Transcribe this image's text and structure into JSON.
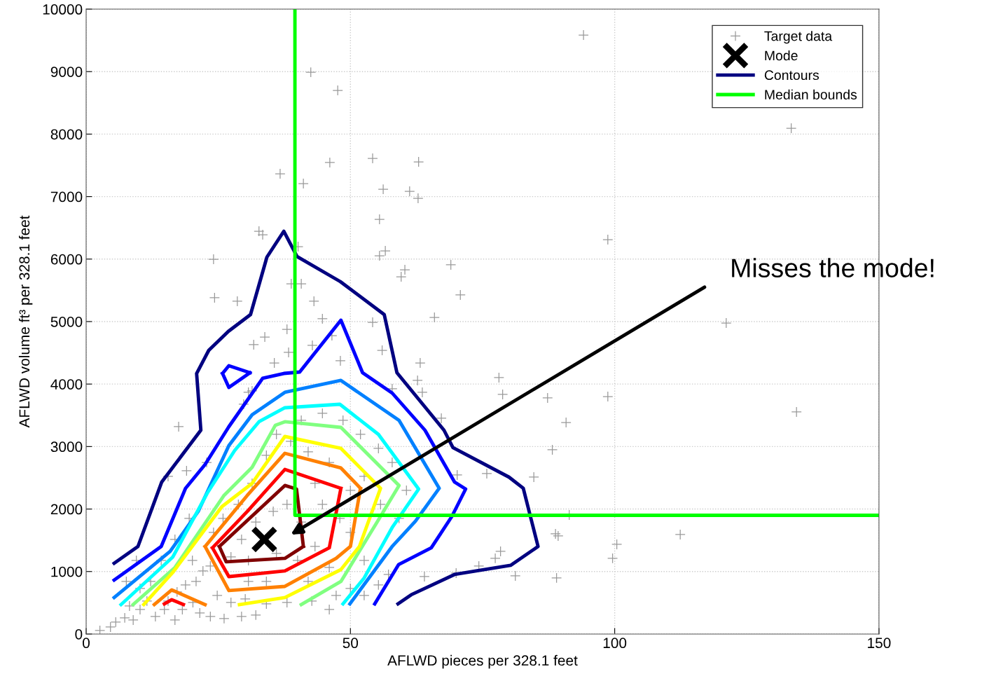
{
  "chart_data": {
    "type": "scatter",
    "xlabel": "AFLWD pieces per 328.1 feet",
    "ylabel": "AFLWD volume ft³ per 328.1 feet",
    "xlim": [
      0,
      150
    ],
    "xticks": [
      0,
      50,
      100,
      150
    ],
    "ylim": [
      0,
      10000
    ],
    "yticks": [
      0,
      1000,
      2000,
      3000,
      4000,
      5000,
      6000,
      7000,
      8000,
      9000,
      10000
    ],
    "grid": true,
    "legend": "top right",
    "annotations": [
      "Misses the mode!"
    ],
    "series": [
      {
        "name": "Target data",
        "color": "#999999",
        "marker": "cross",
        "x": [
          94.1,
          42.5,
          47.6,
          133.4,
          54.2,
          46.1,
          62.9,
          36.7,
          41.1,
          56.2,
          61.2,
          62.8,
          55.5,
          98.7,
          32.7,
          33.4,
          24.1,
          40.1,
          56.6,
          55.5,
          69.0,
          60.3,
          59.6,
          24.3,
          70.8,
          121.1,
          65.9,
          28.6,
          78.1,
          98.7,
          78.8,
          87.3,
          134.4,
          90.8,
          88.2,
          84.7,
          75.8,
          70.2,
          112.4,
          100.4,
          99.6,
          88.8,
          91.4,
          77.4,
          74.3,
          89.0,
          89.3,
          81.2,
          78.4,
          70.0,
          64.0,
          17.5,
          19.0,
          15.5,
          29.8,
          30.7,
          31.7,
          40.7,
          38.8,
          43.1,
          44.7,
          38.0,
          42.8,
          46.5,
          48.1,
          54.2,
          56.0,
          63.2,
          57.9,
          62.7,
          63.6,
          67.2,
          38.3,
          35.6,
          31.4,
          33.8,
          2.6,
          4.6,
          5.6,
          7.3,
          8.9,
          10.2,
          8.2,
          11.5,
          13.1,
          14.8,
          16.8,
          18.2,
          20.2,
          21.5,
          23.5,
          26.1,
          29.4,
          32.1,
          15.5,
          17.2,
          18.8,
          20.8,
          22.1,
          23.5,
          20.1,
          24.8,
          27.4,
          30.1,
          34.1,
          38.0,
          42.7,
          46.0,
          47.3,
          50.0,
          52.6,
          55.3,
          57.2,
          52.6,
          50.0,
          48.0,
          44.7,
          43.3,
          46.0,
          42.0,
          38.7,
          36.0,
          34.1,
          31.4,
          28.8,
          25.9,
          24.1,
          29.4,
          32.1,
          35.4,
          38.0,
          40.7,
          43.3,
          46.0,
          36.0,
          30.7,
          27.4,
          40.0,
          42.0,
          34.1,
          30.7,
          50.0,
          52.6,
          55.3,
          51.9,
          48.6,
          44.7,
          40.7,
          55.7,
          59.2,
          60.6,
          57.9,
          22.8,
          19.5,
          16.8,
          14.2,
          12.2,
          10.2,
          7.6,
          9.5
        ],
        "values": [
          9585,
          8990,
          8699,
          8094,
          7612,
          7545,
          7556,
          7365,
          7208,
          7118,
          7085,
          6973,
          6636,
          6311,
          6446,
          6390,
          5997,
          6199,
          6132,
          6053,
          5908,
          5829,
          5717,
          5381,
          5426,
          4977,
          5067,
          5325,
          4103,
          3800,
          3834,
          3778,
          3554,
          3385,
          2948,
          2511,
          2567,
          2545,
          1592,
          1435,
          1211,
          1603,
          1906,
          1211,
          1087,
          897,
          1569,
          930,
          1323,
          975,
          919,
          3318,
          2612,
          2522,
          3677,
          3868,
          4630,
          5605,
          5605,
          5325,
          5045,
          4876,
          4619,
          4775,
          4372,
          4988,
          4540,
          4338,
          3924,
          4058,
          3868,
          3453,
          4507,
          4338,
          3890,
          4753,
          56,
          112,
          191,
          258,
          224,
          392,
          448,
          527,
          280,
          392,
          224,
          392,
          504,
          336,
          280,
          247,
          280,
          303,
          527,
          673,
          785,
          841,
          1009,
          1087,
          1177,
          617,
          504,
          561,
          482,
          504,
          527,
          392,
          617,
          729,
          617,
          785,
          953,
          1177,
          1625,
          1850,
          2074,
          2410,
          2746,
          2915,
          3083,
          3195,
          2859,
          2410,
          2074,
          1850,
          1625,
          1513,
          1793,
          1962,
          2074,
          1793,
          1401,
          1065,
          1289,
          1177,
          1233,
          1177,
          841,
          841,
          841,
          2298,
          2522,
          2971,
          3195,
          3419,
          3531,
          3419,
          2074,
          1850,
          2298,
          2746,
          2746,
          1850,
          1513,
          1177,
          841,
          729,
          841,
          1177
        ]
      },
      {
        "name": "Mode",
        "color": "#000000",
        "marker": "cross",
        "x": [
          33.7
        ],
        "values": [
          1513
        ]
      },
      {
        "type": "line",
        "name": "Contours",
        "color": "#000080",
        "x": [
          5.3,
          9.8,
          14.3,
          21.7,
          20.9,
          23.2,
          26.9,
          31.1,
          34.2,
          37.4,
          39.9,
          48.1,
          56.4,
          58.8,
          67.7,
          69.4,
          80.0,
          82.7,
          85.5,
          80.3,
          69.7,
          61.5,
          59.0
        ],
        "values": [
          1132,
          1401,
          2433,
          3262,
          4170,
          4540,
          4843,
          5112,
          6031,
          6446,
          6042,
          5639,
          5112,
          4181,
          3262,
          2982,
          2511,
          2332,
          1401,
          1099,
          953,
          628,
          482
        ]
      },
      {
        "type": "line",
        "color": "#0000ff",
        "x": [
          25.8,
          27.0,
          31.0,
          null,
          25.8,
          27.0,
          31.0,
          null,
          5.3,
          14.2,
          18.8,
          22.5,
          27.0,
          33.4,
          37.4,
          40.4,
          48.2,
          52.3,
          57.9,
          64.1,
          69.7,
          71.8,
          69.2,
          65.3,
          59.1,
          54.6
        ],
        "values": [
          4170,
          4293,
          4181,
          null,
          4170,
          3946,
          4181,
          null,
          863,
          1401,
          2332,
          2713,
          3318,
          4092,
          4170,
          4193,
          5022,
          4181,
          3856,
          3262,
          2433,
          2320,
          1883,
          1379,
          1110,
          482
        ]
      },
      {
        "type": "line",
        "color": "#0080ff",
        "x": [
          5.3,
          15.9,
          21.2,
          27.0,
          31.4,
          37.6,
          48.2,
          59.2,
          66.8,
          62.3,
          57.9,
          49.9
        ],
        "values": [
          583,
          1323,
          1962,
          3015,
          3509,
          3868,
          4058,
          3419,
          2332,
          1805,
          1401,
          482
        ]
      },
      {
        "type": "line",
        "color": "#00ffff",
        "x": [
          6.6,
          16.4,
          22.9,
          28.1,
          32.7,
          37.6,
          48.0,
          55.3,
          62.9,
          57.9,
          52.6,
          48.6
        ],
        "values": [
          471,
          1233,
          2253,
          2937,
          3397,
          3621,
          3677,
          3195,
          2320,
          1704,
          897,
          482
        ]
      },
      {
        "type": "line",
        "color": "#80ff80",
        "x": [
          8.9,
          16.8,
          26.1,
          31.4,
          35.8,
          37.6,
          48.2,
          59.2,
          54.9,
          48.2,
          40.7
        ],
        "values": [
          471,
          1065,
          2220,
          2668,
          3341,
          3397,
          3307,
          2377,
          1771,
          841,
          471
        ]
      },
      {
        "type": "line",
        "color": "#ffff00",
        "x": [
          10.9,
          16.4,
          25.7,
          31.4,
          37.6,
          48.2,
          55.7,
          51.7,
          48.2,
          37.6,
          29.0
        ],
        "values": [
          471,
          986,
          2040,
          2410,
          3161,
          2971,
          2332,
          1401,
          1031,
          583,
          471
        ]
      },
      {
        "type": "line",
        "color": "#ff8000",
        "x": [
          22.5,
          30.5,
          37.6,
          48.2,
          51.9,
          null,
          22.5,
          27.0,
          37.6,
          47.3,
          50.0,
          51.9,
          null,
          12.9,
          16.2,
          22.5
        ],
        "values": [
          1401,
          2220,
          2892,
          2657,
          2332,
          null,
          1401,
          695,
          762,
          1211,
          1401,
          2332,
          null,
          471,
          706,
          471
        ]
      },
      {
        "type": "line",
        "color": "#ff0000",
        "x": [
          23.9,
          30.5,
          37.6,
          48.2,
          null,
          23.9,
          27.0,
          37.6,
          46.0,
          48.2,
          null,
          14.8,
          16.2,
          18.4
        ],
        "values": [
          1379,
          1962,
          2634,
          2332,
          null,
          1379,
          919,
          1009,
          1379,
          2332,
          null,
          482,
          549,
          471
        ]
      },
      {
        "type": "line",
        "color": "#800000",
        "x": [
          25.2,
          37.6,
          39.8,
          41.1,
          null,
          25.2,
          26.5,
          37.6,
          41.1
        ],
        "values": [
          1401,
          2377,
          2320,
          1401,
          null,
          1401,
          1155,
          1211,
          1401
        ]
      },
      {
        "type": "line",
        "name": "Median bounds",
        "color": "#00ff00",
        "x": [
          39.5,
          39.5,
          150
        ],
        "values": [
          10000,
          1900,
          1900
        ]
      }
    ]
  }
}
